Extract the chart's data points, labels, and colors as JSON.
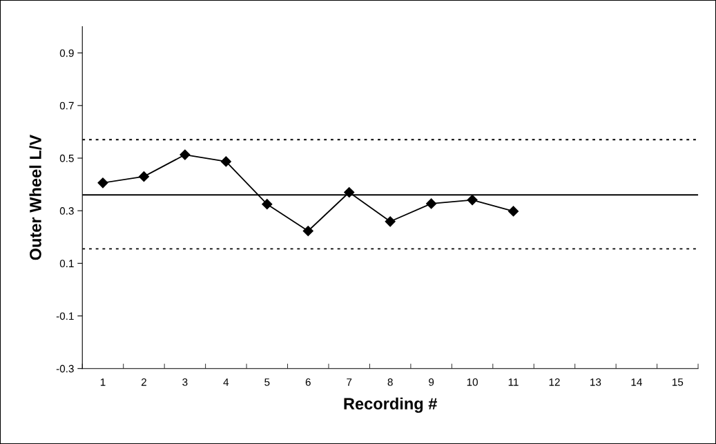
{
  "chart_data": {
    "type": "line",
    "xlabel": "Recording #",
    "ylabel": "Outer Wheel L/V",
    "categories": [
      "1",
      "2",
      "3",
      "4",
      "5",
      "6",
      "7",
      "8",
      "9",
      "10",
      "11",
      "12",
      "13",
      "14",
      "15"
    ],
    "series": [
      {
        "color": "#000000",
        "values": [
          0.406,
          0.43,
          0.513,
          0.487,
          0.325,
          0.223,
          0.37,
          0.259,
          0.327,
          0.341,
          0.298,
          null,
          null,
          null,
          null
        ]
      }
    ],
    "ylim": [
      -0.3,
      1.0
    ],
    "yticks": [
      -0.3,
      -0.1,
      0.1,
      0.3,
      0.5,
      0.7,
      0.9
    ],
    "ref_lines": [
      {
        "axis": "y",
        "value": 0.57,
        "line_style": "dotted",
        "color": "#000000"
      },
      {
        "axis": "y",
        "value": 0.36,
        "line_style": "solid",
        "color": "#000000"
      },
      {
        "axis": "y",
        "value": 0.155,
        "line_style": "dotted",
        "color": "#000000"
      }
    ],
    "marker": "diamond",
    "line_style": "solid",
    "grid": false,
    "legend": false
  }
}
